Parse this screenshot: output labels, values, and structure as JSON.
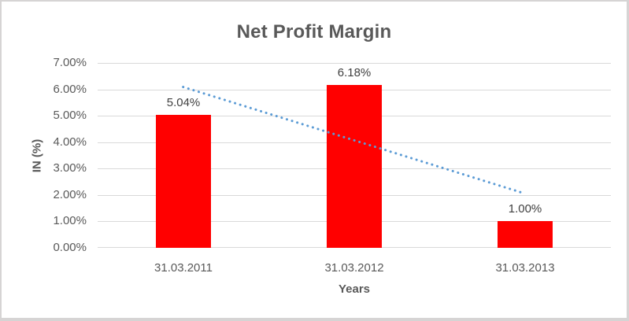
{
  "chart_data": {
    "type": "bar",
    "title": "Net Profit Margin",
    "xlabel": "Years",
    "ylabel": "IN (%)",
    "categories": [
      "31.03.2011",
      "31.03.2012",
      "31.03.2013"
    ],
    "values": [
      5.04,
      6.18,
      1.0
    ],
    "data_labels": [
      "5.04%",
      "6.18%",
      "1.00%"
    ],
    "ylim": [
      0,
      7
    ],
    "y_tick_step": 1,
    "y_tick_labels": [
      "0.00%",
      "1.00%",
      "2.00%",
      "3.00%",
      "4.00%",
      "5.00%",
      "6.00%",
      "7.00%"
    ],
    "grid": true,
    "legend": "none",
    "bar_color": "#ff0000",
    "trendline": {
      "type": "linear-dotted",
      "start_value": 6.09,
      "end_value": 2.05,
      "color": "#5b9bd5"
    }
  },
  "colors": {
    "gridline": "#d9d9d9",
    "tick_text": "#595959",
    "title_text": "#595959",
    "data_label_text": "#404040",
    "frame_border": "#d6d4d4",
    "background": "#ffffff"
  }
}
